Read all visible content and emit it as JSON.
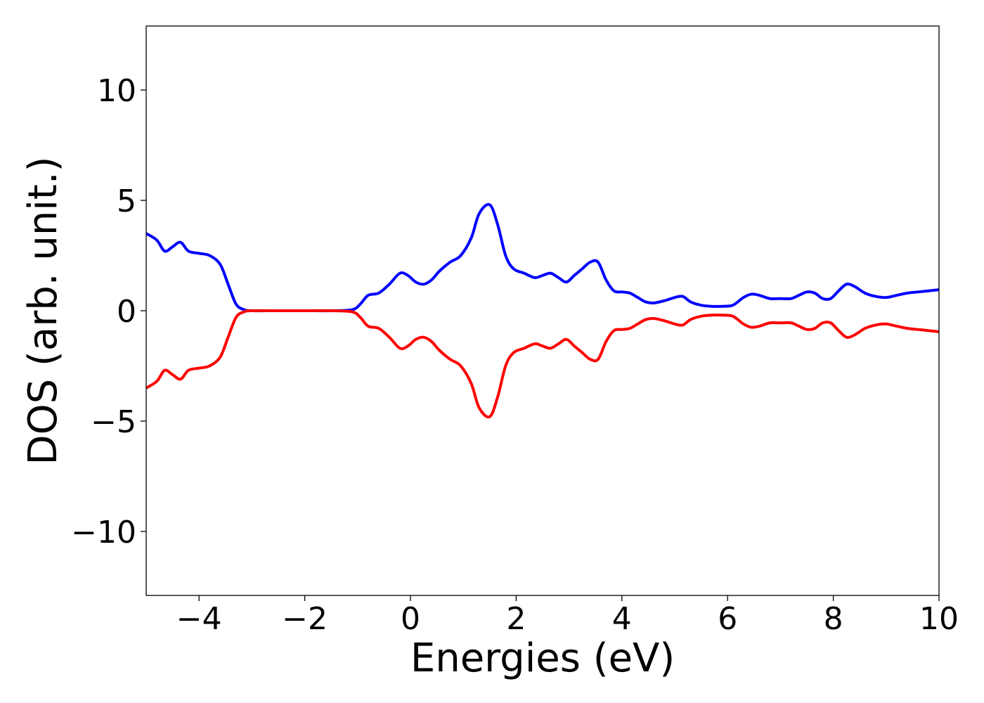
{
  "chart_data": {
    "type": "line",
    "title": "",
    "xlabel": "Energies (eV)",
    "ylabel": "DOS (arb. unit.)",
    "xlim": [
      -5,
      10
    ],
    "ylim": [
      -12.9,
      12.9
    ],
    "xticks": [
      -4,
      -2,
      0,
      2,
      4,
      6,
      8,
      10
    ],
    "xtick_labels": [
      "−4",
      "−2",
      "0",
      "2",
      "4",
      "6",
      "8",
      "10"
    ],
    "yticks": [
      -10,
      -5,
      0,
      5,
      10
    ],
    "ytick_labels": [
      "−10",
      "−5",
      "0",
      "5",
      "10"
    ],
    "grid": false,
    "legend": "none",
    "series": [
      {
        "color": "#0000ff",
        "x": [
          -5.0,
          -4.8,
          -4.65,
          -4.5,
          -4.35,
          -4.2,
          -4.0,
          -3.8,
          -3.6,
          -3.45,
          -3.3,
          -3.15,
          -3.0,
          -2.5,
          -2.0,
          -1.5,
          -1.1,
          -0.95,
          -0.8,
          -0.6,
          -0.4,
          -0.2,
          -0.05,
          0.1,
          0.25,
          0.4,
          0.55,
          0.75,
          0.95,
          1.15,
          1.3,
          1.5,
          1.65,
          1.8,
          1.95,
          2.15,
          2.35,
          2.5,
          2.65,
          2.8,
          2.95,
          3.1,
          3.25,
          3.4,
          3.55,
          3.7,
          3.85,
          4.0,
          4.15,
          4.3,
          4.45,
          4.6,
          4.8,
          5.0,
          5.15,
          5.3,
          5.5,
          5.7,
          5.9,
          6.1,
          6.3,
          6.45,
          6.6,
          6.8,
          7.0,
          7.2,
          7.35,
          7.5,
          7.65,
          7.8,
          7.95,
          8.1,
          8.25,
          8.4,
          8.6,
          8.8,
          9.0,
          9.2,
          9.4,
          9.6,
          9.8,
          10.0
        ],
        "y": [
          3.5,
          3.2,
          2.7,
          2.9,
          3.1,
          2.7,
          2.6,
          2.5,
          2.1,
          1.2,
          0.3,
          0.05,
          0.0,
          0.0,
          0.0,
          0.0,
          0.05,
          0.3,
          0.7,
          0.8,
          1.2,
          1.7,
          1.6,
          1.3,
          1.2,
          1.4,
          1.8,
          2.2,
          2.5,
          3.3,
          4.4,
          4.8,
          3.9,
          2.5,
          1.9,
          1.7,
          1.5,
          1.6,
          1.7,
          1.5,
          1.3,
          1.6,
          1.9,
          2.2,
          2.2,
          1.4,
          0.9,
          0.85,
          0.8,
          0.6,
          0.4,
          0.35,
          0.45,
          0.6,
          0.65,
          0.4,
          0.25,
          0.2,
          0.2,
          0.25,
          0.6,
          0.75,
          0.7,
          0.55,
          0.55,
          0.55,
          0.7,
          0.85,
          0.8,
          0.55,
          0.55,
          0.9,
          1.2,
          1.1,
          0.8,
          0.65,
          0.6,
          0.7,
          0.8,
          0.85,
          0.9,
          0.95
        ]
      },
      {
        "color": "#ff0000",
        "x": [
          -5.0,
          -4.8,
          -4.65,
          -4.5,
          -4.35,
          -4.2,
          -4.0,
          -3.8,
          -3.6,
          -3.45,
          -3.3,
          -3.15,
          -3.0,
          -2.5,
          -2.0,
          -1.5,
          -1.1,
          -0.95,
          -0.8,
          -0.6,
          -0.4,
          -0.2,
          -0.05,
          0.1,
          0.25,
          0.4,
          0.55,
          0.75,
          0.95,
          1.15,
          1.3,
          1.5,
          1.65,
          1.8,
          1.95,
          2.15,
          2.35,
          2.5,
          2.65,
          2.8,
          2.95,
          3.1,
          3.25,
          3.4,
          3.55,
          3.7,
          3.85,
          4.0,
          4.15,
          4.3,
          4.45,
          4.6,
          4.8,
          5.0,
          5.15,
          5.3,
          5.5,
          5.7,
          5.9,
          6.1,
          6.3,
          6.45,
          6.6,
          6.8,
          7.0,
          7.2,
          7.35,
          7.5,
          7.65,
          7.8,
          7.95,
          8.1,
          8.25,
          8.4,
          8.6,
          8.8,
          9.0,
          9.2,
          9.4,
          9.6,
          9.8,
          10.0
        ],
        "y": [
          -3.5,
          -3.2,
          -2.7,
          -2.9,
          -3.1,
          -2.7,
          -2.6,
          -2.5,
          -2.1,
          -1.2,
          -0.3,
          -0.05,
          0.0,
          0.0,
          0.0,
          0.0,
          -0.05,
          -0.3,
          -0.7,
          -0.8,
          -1.2,
          -1.7,
          -1.6,
          -1.3,
          -1.2,
          -1.4,
          -1.8,
          -2.2,
          -2.5,
          -3.3,
          -4.4,
          -4.8,
          -3.9,
          -2.5,
          -1.9,
          -1.7,
          -1.5,
          -1.6,
          -1.7,
          -1.5,
          -1.3,
          -1.6,
          -1.9,
          -2.2,
          -2.2,
          -1.4,
          -0.9,
          -0.85,
          -0.8,
          -0.6,
          -0.4,
          -0.35,
          -0.45,
          -0.6,
          -0.65,
          -0.4,
          -0.25,
          -0.2,
          -0.2,
          -0.25,
          -0.6,
          -0.75,
          -0.7,
          -0.55,
          -0.55,
          -0.55,
          -0.7,
          -0.85,
          -0.8,
          -0.55,
          -0.55,
          -0.9,
          -1.2,
          -1.1,
          -0.8,
          -0.65,
          -0.6,
          -0.7,
          -0.8,
          -0.85,
          -0.9,
          -0.95
        ]
      }
    ]
  }
}
